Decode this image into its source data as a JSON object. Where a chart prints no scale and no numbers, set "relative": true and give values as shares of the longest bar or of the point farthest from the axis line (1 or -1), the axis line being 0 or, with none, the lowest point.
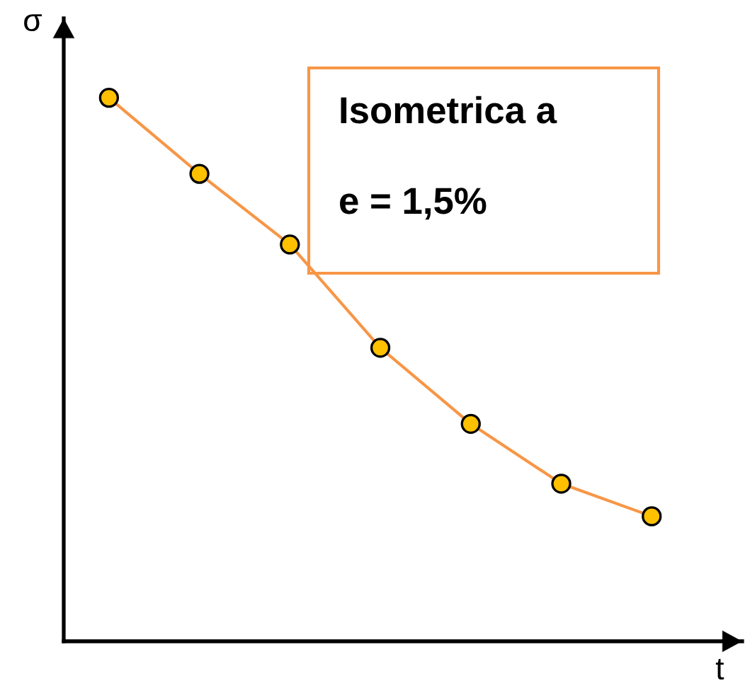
{
  "chart_data": {
    "type": "line",
    "relative": true,
    "xlabel": "t",
    "ylabel": "σ",
    "categories": [
      null,
      null,
      null,
      null,
      null,
      null,
      null
    ],
    "series": [
      {
        "color": "#f79646",
        "colors": [
          "#ffc000",
          "#ffc000",
          "#ffc000",
          "#ffc000",
          "#ffc000",
          "#ffc000",
          "#ffc000"
        ],
        "values": [
          1,
          0.86,
          0.73,
          0.54,
          0.4,
          0.29,
          0.23
        ]
      }
    ],
    "marker": "circle",
    "line_style": "solid",
    "annotations": [
      "Isometrica a",
      "e = 1,5%"
    ]
  }
}
